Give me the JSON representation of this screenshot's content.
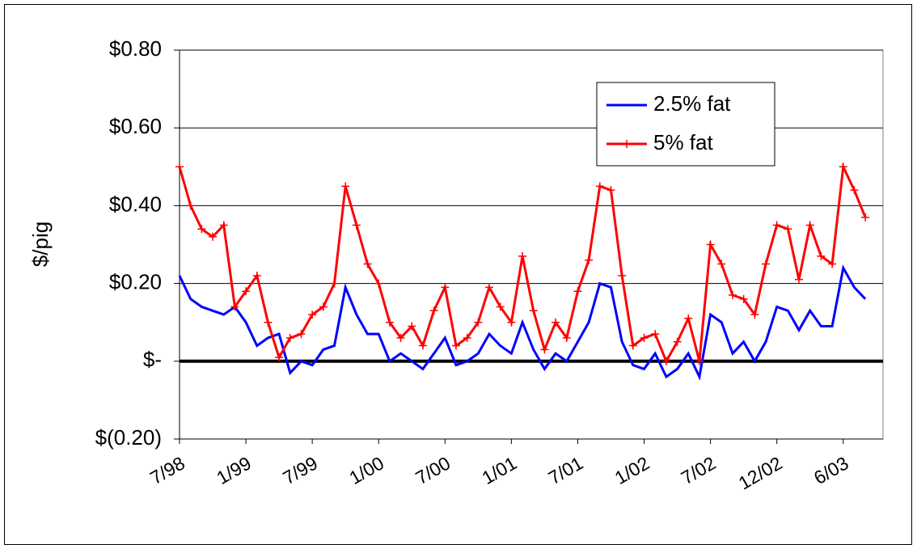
{
  "chart_data": {
    "type": "line",
    "y_label": "$/pig",
    "categories": [
      "7/98",
      null,
      null,
      null,
      null,
      null,
      "1/99",
      null,
      null,
      null,
      null,
      null,
      "7/99",
      null,
      null,
      null,
      null,
      null,
      "1/00",
      null,
      null,
      null,
      null,
      null,
      "7/00",
      null,
      null,
      null,
      null,
      null,
      "1/01",
      null,
      null,
      null,
      null,
      null,
      "7/01",
      null,
      null,
      null,
      null,
      null,
      "1/02",
      null,
      null,
      null,
      null,
      null,
      "7/02",
      null,
      null,
      null,
      null,
      null,
      "12/02",
      null,
      null,
      null,
      null,
      null,
      "6/03",
      null,
      null
    ],
    "series": [
      {
        "name": "2.5% fat",
        "color": "#0000ff",
        "marker": "none",
        "values": [
          0.22,
          0.16,
          0.14,
          0.13,
          0.12,
          0.14,
          0.1,
          0.04,
          0.06,
          0.07,
          -0.03,
          0.0,
          -0.01,
          0.03,
          0.04,
          0.19,
          0.12,
          0.07,
          0.07,
          0.0,
          0.02,
          0.0,
          -0.02,
          0.02,
          0.06,
          -0.01,
          0.0,
          0.02,
          0.07,
          0.04,
          0.02,
          0.1,
          0.03,
          -0.02,
          0.02,
          0.0,
          0.05,
          0.1,
          0.2,
          0.19,
          0.05,
          -0.01,
          -0.02,
          0.02,
          -0.04,
          -0.02,
          0.02,
          -0.04,
          0.12,
          0.1,
          0.02,
          0.05,
          0.0,
          0.05,
          0.14,
          0.13,
          0.08,
          0.13,
          0.09,
          0.09,
          0.24,
          0.19,
          0.16
        ]
      },
      {
        "name": "5% fat",
        "color": "#ff0000",
        "marker": "plus",
        "values": [
          0.5,
          0.4,
          0.34,
          0.32,
          0.35,
          0.14,
          0.18,
          0.22,
          0.1,
          0.01,
          0.06,
          0.07,
          0.12,
          0.14,
          0.2,
          0.45,
          0.35,
          0.25,
          0.2,
          0.1,
          0.06,
          0.09,
          0.04,
          0.13,
          0.19,
          0.04,
          0.06,
          0.1,
          0.19,
          0.14,
          0.1,
          0.27,
          0.13,
          0.03,
          0.1,
          0.06,
          0.18,
          0.26,
          0.45,
          0.44,
          0.22,
          0.04,
          0.06,
          0.07,
          0.0,
          0.05,
          0.11,
          0.0,
          0.3,
          0.25,
          0.17,
          0.16,
          0.12,
          0.25,
          0.35,
          0.34,
          0.21,
          0.35,
          0.27,
          0.25,
          0.5,
          0.44,
          0.37
        ]
      }
    ],
    "ylim": [
      -0.2,
      0.8
    ],
    "yticks": [
      {
        "value": -0.2,
        "label": "$(0.20)"
      },
      {
        "value": 0,
        "label": "$-"
      },
      {
        "value": 0.2,
        "label": "$0.20"
      },
      {
        "value": 0.4,
        "label": "$0.40"
      },
      {
        "value": 0.6,
        "label": "$0.60"
      },
      {
        "value": 0.8,
        "label": "$0.80"
      }
    ],
    "grid": true,
    "legend": "upper-right"
  }
}
